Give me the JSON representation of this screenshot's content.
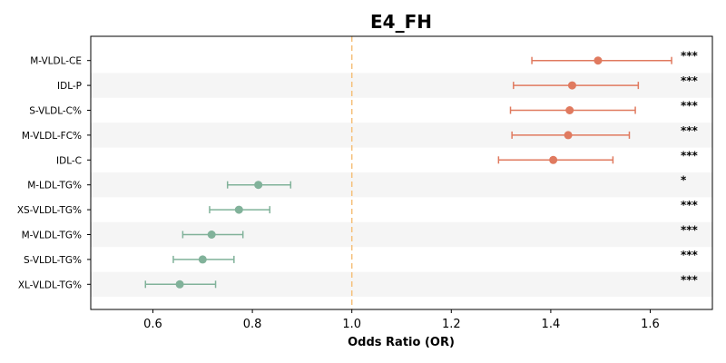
{
  "chart_data": {
    "type": "scatter",
    "subtype": "forest-plot",
    "title": "E4_FH",
    "xlabel": "Odds Ratio (OR)",
    "ylabel": "",
    "xlim": [
      0.475,
      1.725
    ],
    "xticks": [
      0.6,
      0.8,
      1.0,
      1.2,
      1.4,
      1.6
    ],
    "xtick_labels": [
      "0.6",
      "0.8",
      "1.0",
      "1.2",
      "1.4",
      "1.6"
    ],
    "reference_line": {
      "x": 1.0,
      "style": "dashed",
      "color": "#f5c07a"
    },
    "grid": false,
    "alternating_row_shading": "#f5f5f5",
    "colors": {
      "increased": "#e07a5f",
      "decreased": "#81b29a"
    },
    "rows": [
      {
        "label": "M-VLDL-CE",
        "or": 1.495,
        "lo": 1.362,
        "hi": 1.643,
        "sig": "***",
        "color": "#e07a5f"
      },
      {
        "label": "IDL-P",
        "or": 1.443,
        "lo": 1.325,
        "hi": 1.576,
        "sig": "***",
        "color": "#e07a5f"
      },
      {
        "label": "S-VLDL-C%",
        "or": 1.438,
        "lo": 1.319,
        "hi": 1.57,
        "sig": "***",
        "color": "#e07a5f"
      },
      {
        "label": "M-VLDL-FC%",
        "or": 1.435,
        "lo": 1.322,
        "hi": 1.558,
        "sig": "***",
        "color": "#e07a5f"
      },
      {
        "label": "IDL-C",
        "or": 1.405,
        "lo": 1.295,
        "hi": 1.525,
        "sig": "***",
        "color": "#e07a5f"
      },
      {
        "label": "M-LDL-TG%",
        "or": 0.812,
        "lo": 0.75,
        "hi": 0.877,
        "sig": "*",
        "color": "#81b29a"
      },
      {
        "label": "XS-VLDL-TG%",
        "or": 0.773,
        "lo": 0.714,
        "hi": 0.835,
        "sig": "***",
        "color": "#81b29a"
      },
      {
        "label": "M-VLDL-TG%",
        "or": 0.718,
        "lo": 0.66,
        "hi": 0.781,
        "sig": "***",
        "color": "#81b29a"
      },
      {
        "label": "S-VLDL-TG%",
        "or": 0.7,
        "lo": 0.641,
        "hi": 0.763,
        "sig": "***",
        "color": "#81b29a"
      },
      {
        "label": "XL-VLDL-TG%",
        "or": 0.654,
        "lo": 0.585,
        "hi": 0.726,
        "sig": "***",
        "color": "#81b29a"
      }
    ]
  }
}
